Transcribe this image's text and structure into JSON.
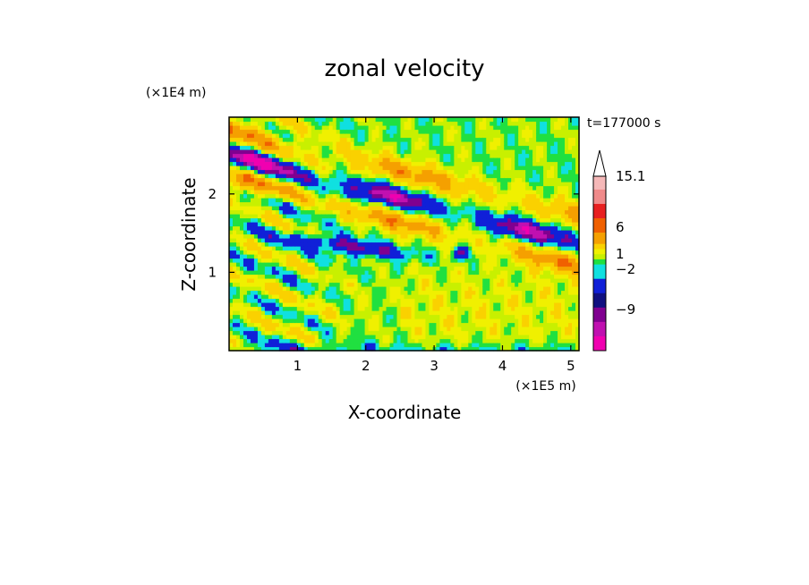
{
  "chart_data": {
    "type": "heatmap",
    "title": "zonal velocity",
    "xlabel": "X-coordinate",
    "ylabel": "Z-coordinate",
    "x_unit": "(×1E5 m)",
    "y_unit": "(×1E4 m)",
    "time_label": "t=177000 s",
    "xlim": [
      0,
      5.12
    ],
    "ylim": [
      0,
      2.98
    ],
    "x_ticks": [
      1,
      2,
      3,
      4,
      5
    ],
    "y_ticks": [
      1,
      2
    ],
    "colorbar": {
      "labels": [
        "15.1",
        "6",
        "1",
        "−2",
        "−9"
      ],
      "colors": [
        "#f5b8b8",
        "#f08a8a",
        "#e82020",
        "#f06000",
        "#f5a000",
        "#fad100",
        "#f0f000",
        "#c8f000",
        "#20e040",
        "#10e0e0",
        "#1020d8",
        "#101080",
        "#800090",
        "#c010b0",
        "#f000b0"
      ],
      "triangle_color": "#ffffff"
    },
    "levels": [
      -12,
      -9,
      -6,
      -4,
      -2,
      -1,
      0,
      1,
      2,
      4,
      6,
      9,
      12,
      15.1,
      18
    ],
    "field_description": "zonal velocity field sampled on grid; values in levels units",
    "field_colors": {
      "-12": "#f000b0",
      "-9": "#c010b0",
      "-6": "#800090",
      "-4": "#1020d8",
      "-2": "#10e0e0",
      "-1": "#20e040",
      "0": "#c8f000",
      "1": "#f0f000",
      "2": "#fad100",
      "4": "#f5a000",
      "6": "#f06000",
      "9": "#e82020",
      "12": "#f08a8a",
      "15": "#f5b8b8"
    }
  }
}
